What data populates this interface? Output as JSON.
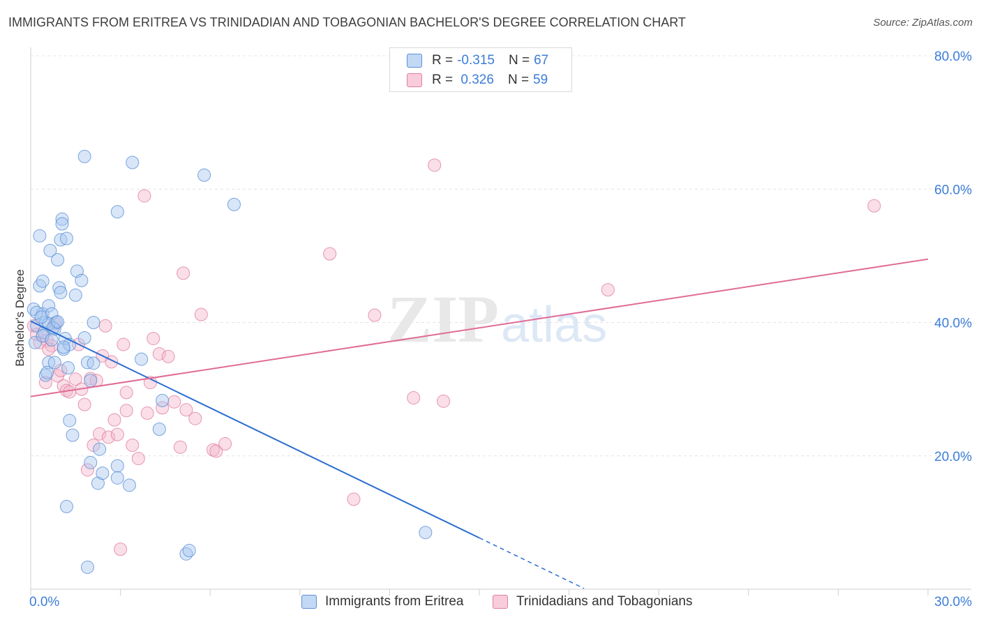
{
  "header": {
    "title": "IMMIGRANTS FROM ERITREA VS TRINIDADIAN AND TOBAGONIAN BACHELOR'S DEGREE CORRELATION CHART",
    "source": "Source: ZipAtlas.com"
  },
  "legend": {
    "rows": [
      {
        "r_label": "R = ",
        "r_value": "-0.315",
        "n_label": "N = ",
        "n_value": "67"
      },
      {
        "r_label": "R = ",
        "r_value": " 0.326",
        "n_label": "N = ",
        "n_value": "59"
      }
    ]
  },
  "watermark": {
    "zip": "ZIP",
    "atlas": "atlas"
  },
  "colors": {
    "blue_fill": "#a9c8f0",
    "blue_stroke": "#5b8fd6",
    "blue_line": "#2a6dd0",
    "pink_fill": "#f5b8cb",
    "pink_stroke": "#e07ea0",
    "pink_line": "#e06b96",
    "axis_label": "#3b7dd8",
    "grid": "#e4e4e4"
  },
  "chart_data": {
    "type": "scatter",
    "title": "IMMIGRANTS FROM ERITREA VS TRINIDADIAN AND TOBAGONIAN BACHELOR'S DEGREE CORRELATION CHART",
    "xlabel": "",
    "ylabel": "Bachelor's Degree",
    "xlim": [
      0,
      30
    ],
    "ylim": [
      0,
      80
    ],
    "x_tick_labels": [
      "0.0%",
      "30.0%"
    ],
    "y_tick_labels": [
      "20.0%",
      "40.0%",
      "60.0%",
      "80.0%"
    ],
    "y_ticks": [
      20,
      40,
      60,
      80
    ],
    "grid": "horizontal dashed",
    "legend_position": "top-center",
    "series": [
      {
        "name": "Immigrants from Eritrea",
        "color": "#a9c8f0",
        "trend": {
          "x0": 0.0,
          "y0": 40.2,
          "x1": 15.0,
          "y1": 7.7,
          "dashed_to_x": 18.5
        },
        "points": [
          [
            0.1,
            42.0
          ],
          [
            0.2,
            39.5
          ],
          [
            0.15,
            37.0
          ],
          [
            0.3,
            53.0
          ],
          [
            0.3,
            45.5
          ],
          [
            0.4,
            46.2
          ],
          [
            0.4,
            41.3
          ],
          [
            0.5,
            40.0
          ],
          [
            0.45,
            38.5
          ],
          [
            0.5,
            32.1
          ],
          [
            0.6,
            34.0
          ],
          [
            0.6,
            42.5
          ],
          [
            0.65,
            50.8
          ],
          [
            0.7,
            41.3
          ],
          [
            0.8,
            39.0
          ],
          [
            0.8,
            34.0
          ],
          [
            0.85,
            40.0
          ],
          [
            0.9,
            49.4
          ],
          [
            0.95,
            45.2
          ],
          [
            1.0,
            44.5
          ],
          [
            1.0,
            52.4
          ],
          [
            1.05,
            55.5
          ],
          [
            1.05,
            54.8
          ],
          [
            1.1,
            36.0
          ],
          [
            1.15,
            37.6
          ],
          [
            1.2,
            52.6
          ],
          [
            1.25,
            33.2
          ],
          [
            1.3,
            36.7
          ],
          [
            1.3,
            25.3
          ],
          [
            1.4,
            23.1
          ],
          [
            1.5,
            44.1
          ],
          [
            1.55,
            47.7
          ],
          [
            1.7,
            46.3
          ],
          [
            1.8,
            37.7
          ],
          [
            1.9,
            34.0
          ],
          [
            2.0,
            31.3
          ],
          [
            2.1,
            33.9
          ],
          [
            2.1,
            40.0
          ],
          [
            2.25,
            15.9
          ],
          [
            2.3,
            21.0
          ],
          [
            2.4,
            17.4
          ],
          [
            2.0,
            19.0
          ],
          [
            2.9,
            18.5
          ],
          [
            2.9,
            16.7
          ],
          [
            3.3,
            15.6
          ],
          [
            2.9,
            56.6
          ],
          [
            3.4,
            64.0
          ],
          [
            1.8,
            64.9
          ],
          [
            3.7,
            34.5
          ],
          [
            4.3,
            24.0
          ],
          [
            4.4,
            28.3
          ],
          [
            5.2,
            5.3
          ],
          [
            5.3,
            5.8
          ],
          [
            5.8,
            62.1
          ],
          [
            6.8,
            57.7
          ],
          [
            13.2,
            8.5
          ],
          [
            1.2,
            12.4
          ],
          [
            1.9,
            3.3
          ],
          [
            0.4,
            38.0
          ],
          [
            0.6,
            39.8
          ],
          [
            0.2,
            41.5
          ],
          [
            0.7,
            37.4
          ],
          [
            0.35,
            40.8
          ],
          [
            0.55,
            32.5
          ],
          [
            0.75,
            39.2
          ],
          [
            1.1,
            36.3
          ],
          [
            0.9,
            40.1
          ]
        ]
      },
      {
        "name": "Trinidadians and Tobagonians",
        "color": "#f5b8cb",
        "trend": {
          "x0": 0.0,
          "y0": 28.9,
          "x1": 30.0,
          "y1": 49.5
        },
        "points": [
          [
            0.1,
            39.5
          ],
          [
            0.2,
            38.2
          ],
          [
            0.3,
            37.0
          ],
          [
            0.4,
            38.0
          ],
          [
            0.5,
            31.0
          ],
          [
            0.55,
            37.3
          ],
          [
            0.7,
            36.5
          ],
          [
            0.8,
            39.8
          ],
          [
            0.9,
            32.0
          ],
          [
            1.0,
            32.8
          ],
          [
            1.1,
            30.5
          ],
          [
            1.2,
            29.8
          ],
          [
            1.3,
            29.6
          ],
          [
            1.5,
            31.5
          ],
          [
            1.6,
            36.7
          ],
          [
            1.7,
            30.0
          ],
          [
            1.8,
            27.7
          ],
          [
            1.9,
            17.9
          ],
          [
            2.0,
            31.6
          ],
          [
            2.1,
            21.6
          ],
          [
            2.2,
            31.3
          ],
          [
            2.3,
            23.3
          ],
          [
            2.4,
            35.0
          ],
          [
            2.5,
            39.5
          ],
          [
            2.6,
            22.8
          ],
          [
            2.7,
            34.1
          ],
          [
            2.8,
            25.4
          ],
          [
            2.9,
            23.2
          ],
          [
            3.1,
            36.7
          ],
          [
            3.2,
            26.8
          ],
          [
            3.2,
            29.5
          ],
          [
            3.4,
            21.6
          ],
          [
            3.6,
            19.6
          ],
          [
            3.9,
            26.4
          ],
          [
            4.0,
            31.0
          ],
          [
            4.1,
            37.6
          ],
          [
            4.3,
            35.3
          ],
          [
            4.4,
            27.2
          ],
          [
            4.6,
            34.9
          ],
          [
            4.8,
            28.1
          ],
          [
            5.0,
            21.3
          ],
          [
            5.1,
            47.4
          ],
          [
            5.2,
            26.9
          ],
          [
            5.5,
            25.6
          ],
          [
            5.7,
            41.2
          ],
          [
            6.1,
            20.9
          ],
          [
            6.2,
            20.7
          ],
          [
            6.5,
            21.8
          ],
          [
            3.8,
            59.0
          ],
          [
            3.0,
            6.0
          ],
          [
            10.0,
            50.3
          ],
          [
            10.8,
            13.5
          ],
          [
            11.5,
            41.1
          ],
          [
            12.8,
            28.7
          ],
          [
            13.5,
            63.6
          ],
          [
            13.8,
            28.2
          ],
          [
            19.3,
            44.9
          ],
          [
            28.2,
            57.5
          ],
          [
            0.6,
            36.0
          ]
        ]
      }
    ]
  },
  "bottom_legend": {
    "items": [
      "Immigrants from Eritrea",
      "Trinidadians and Tobagonians"
    ]
  }
}
